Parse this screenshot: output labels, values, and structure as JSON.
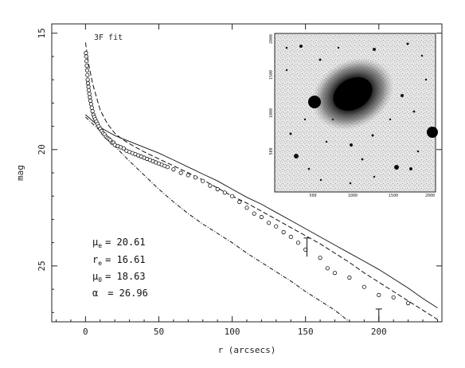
{
  "chart_data": {
    "type": "scatter",
    "title": "",
    "panel_label": "3F fit",
    "xlabel": "r (arcsecs)",
    "ylabel": "mag",
    "xlim": [
      -23,
      243
    ],
    "ylim": [
      27.4,
      14.6
    ],
    "y_inverted": true,
    "x_ticks": [
      0,
      50,
      100,
      150,
      200
    ],
    "x_tick_labels": [
      "0",
      "50",
      "100",
      "150",
      "200"
    ],
    "y_ticks": [
      15,
      20,
      25
    ],
    "y_tick_labels": [
      "15",
      "20",
      "25"
    ],
    "grid": false,
    "legend": "none",
    "parameters": [
      {
        "symbol": "μ",
        "sub": "e",
        "value": "= 20.61"
      },
      {
        "symbol": "r",
        "sub": "e",
        "value": "= 16.61"
      },
      {
        "symbol": "μ",
        "sub": "0",
        "value": "= 18.63"
      },
      {
        "symbol": "α",
        "sub": "",
        "value": "= 26.96"
      }
    ],
    "series": [
      {
        "name": "",
        "style": "open-circles",
        "x": [
          0.3,
          0.5,
          0.7,
          0.9,
          1.1,
          1.3,
          1.5,
          1.7,
          2.0,
          2.3,
          2.6,
          3.0,
          3.4,
          3.8,
          4.3,
          4.8,
          5.4,
          6.0,
          6.7,
          7.4,
          8.2,
          9.0,
          10,
          11,
          12,
          13,
          14,
          15,
          16,
          17,
          18,
          19,
          20,
          22,
          24,
          26,
          28,
          30,
          32,
          34,
          36,
          38,
          40,
          42,
          44,
          46,
          48,
          50,
          52,
          54,
          56,
          60,
          65,
          70,
          75,
          80,
          85,
          90,
          95,
          100,
          105,
          110,
          115,
          120,
          125,
          130,
          135,
          140,
          145,
          150,
          160,
          165,
          170,
          180,
          190,
          200,
          210,
          220
        ],
        "y": [
          15.85,
          16.0,
          16.2,
          16.4,
          16.6,
          16.8,
          17.0,
          17.15,
          17.3,
          17.45,
          17.6,
          17.75,
          17.9,
          18.05,
          18.2,
          18.35,
          18.5,
          18.6,
          18.7,
          18.8,
          18.9,
          19.0,
          19.1,
          19.2,
          19.3,
          19.35,
          19.45,
          19.5,
          19.55,
          19.6,
          19.7,
          19.7,
          19.8,
          19.85,
          19.9,
          19.95,
          20.05,
          20.1,
          20.15,
          20.2,
          20.25,
          20.3,
          20.35,
          20.4,
          20.45,
          20.5,
          20.55,
          20.6,
          20.65,
          20.7,
          20.75,
          20.85,
          21.0,
          21.1,
          21.2,
          21.35,
          21.55,
          21.7,
          21.85,
          22.0,
          22.25,
          22.5,
          22.75,
          22.9,
          23.15,
          23.3,
          23.55,
          23.75,
          24.0,
          24.3,
          24.65,
          25.1,
          25.3,
          25.5,
          25.9,
          26.25,
          26.35,
          26.6
        ]
      },
      {
        "name": "",
        "style": "dashed",
        "x": [
          0,
          2,
          5,
          10,
          15,
          20,
          25,
          30,
          40,
          50,
          60,
          70,
          80,
          90,
          100,
          110,
          120,
          130,
          140,
          150,
          160,
          170,
          180,
          190,
          200,
          210,
          220,
          230,
          240
        ],
        "y": [
          15.4,
          16.3,
          17.2,
          18.3,
          18.9,
          19.3,
          19.55,
          19.75,
          20.1,
          20.4,
          20.7,
          21.0,
          21.3,
          21.65,
          22.0,
          22.3,
          22.65,
          23.0,
          23.35,
          23.7,
          24.05,
          24.45,
          24.85,
          25.3,
          25.7,
          26.1,
          26.5,
          26.9,
          27.3
        ]
      },
      {
        "name": "",
        "style": "dash-dot",
        "x": [
          0,
          10,
          20,
          30,
          40,
          50,
          60,
          70,
          80,
          90,
          100,
          110,
          120,
          130,
          140,
          150,
          160,
          170,
          180
        ],
        "y": [
          18.6,
          19.2,
          19.85,
          20.5,
          21.1,
          21.7,
          22.25,
          22.75,
          23.2,
          23.6,
          24.0,
          24.45,
          24.85,
          25.25,
          25.65,
          26.1,
          26.5,
          26.9,
          27.4
        ]
      },
      {
        "name": "",
        "style": "solid",
        "x": [
          0,
          10,
          20,
          30,
          40,
          50,
          60,
          70,
          80,
          90,
          100,
          110,
          120,
          130,
          140,
          150,
          160,
          170,
          180,
          190,
          200,
          210,
          220,
          230,
          240
        ],
        "y": [
          18.5,
          19.05,
          19.4,
          19.65,
          19.9,
          20.15,
          20.45,
          20.75,
          21.05,
          21.35,
          21.7,
          22.05,
          22.35,
          22.7,
          23.05,
          23.4,
          23.75,
          24.1,
          24.45,
          24.8,
          25.15,
          25.55,
          25.95,
          26.4,
          26.8
        ]
      }
    ],
    "error_bars": [
      {
        "x": 151,
        "y": 24.0,
        "low": 23.8,
        "high": 24.6
      },
      {
        "x": 200,
        "y": 26.9,
        "low": 26.85,
        "high": 27.4
      }
    ],
    "inset": {
      "kind": "galaxy-image",
      "x_tick_labels": [
        "500",
        "1000",
        "1500",
        "2000"
      ],
      "y_tick_labels": [
        "500",
        "1000",
        "1500",
        "2000"
      ]
    }
  }
}
